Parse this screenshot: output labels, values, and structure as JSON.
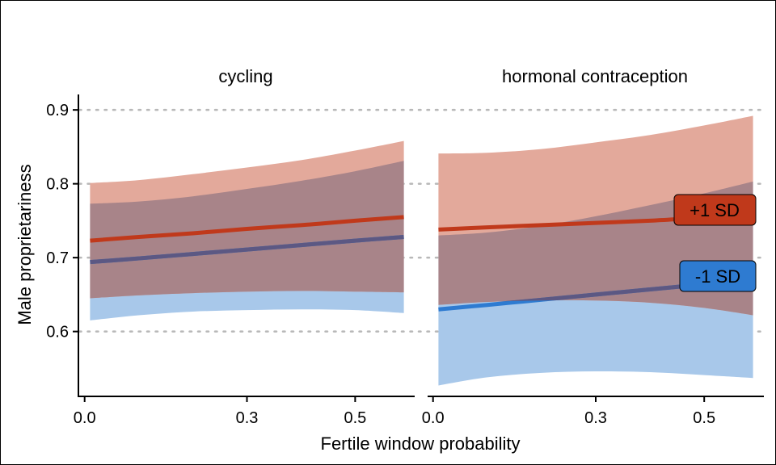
{
  "chart_data": {
    "type": "line",
    "xlabel": "Fertile window probability",
    "ylabel": "Male proprietariness",
    "xlim": [
      -0.01,
      0.61
    ],
    "ylim": [
      0.51,
      0.91
    ],
    "x_ticks": [
      "0.0",
      "0.3",
      "0.5"
    ],
    "x_tick_values": [
      0.0,
      0.3,
      0.5
    ],
    "y_ticks": [
      "0.6",
      "0.7",
      "0.8",
      "0.9"
    ],
    "y_tick_values": [
      0.6,
      0.7,
      0.8,
      0.9
    ],
    "grid": "horizontal dotted",
    "colors": {
      "plus": "#c0391b",
      "plus_band": "#e3a99b",
      "minus": "#2e7bd1",
      "minus_band": "#a8c8ea",
      "overlap_band": "#a88489",
      "minus_line_on_overlap": "#5c5883",
      "grid": "#b8b8b8"
    },
    "panels": [
      {
        "title": "cycling",
        "series": [
          {
            "name": "+1 SD",
            "x": [
              0.01,
              0.1,
              0.2,
              0.3,
              0.4,
              0.5,
              0.59
            ],
            "y": [
              0.723,
              0.728,
              0.733,
              0.739,
              0.744,
              0.75,
              0.755
            ],
            "lower": [
              0.645,
              0.649,
              0.652,
              0.654,
              0.655,
              0.654,
              0.653
            ],
            "upper": [
              0.801,
              0.805,
              0.813,
              0.822,
              0.832,
              0.845,
              0.858
            ]
          },
          {
            "name": "-1 SD",
            "x": [
              0.01,
              0.1,
              0.2,
              0.3,
              0.4,
              0.5,
              0.59
            ],
            "y": [
              0.694,
              0.699,
              0.705,
              0.711,
              0.717,
              0.723,
              0.728
            ],
            "lower": [
              0.615,
              0.622,
              0.627,
              0.629,
              0.63,
              0.629,
              0.625
            ],
            "upper": [
              0.773,
              0.776,
              0.783,
              0.793,
              0.804,
              0.817,
              0.831
            ]
          }
        ]
      },
      {
        "title": "hormonal contraception",
        "series": [
          {
            "name": "+1 SD",
            "x": [
              0.01,
              0.1,
              0.2,
              0.3,
              0.4,
              0.5,
              0.59
            ],
            "y": [
              0.738,
              0.741,
              0.744,
              0.747,
              0.75,
              0.754,
              0.756
            ],
            "lower": [
              0.636,
              0.64,
              0.642,
              0.642,
              0.639,
              0.632,
              0.622
            ],
            "upper": [
              0.841,
              0.842,
              0.847,
              0.856,
              0.866,
              0.879,
              0.892
            ]
          },
          {
            "name": "-1 SD",
            "x": [
              0.01,
              0.1,
              0.2,
              0.3,
              0.4,
              0.5,
              0.59
            ],
            "y": [
              0.63,
              0.636,
              0.643,
              0.65,
              0.657,
              0.664,
              0.67
            ],
            "lower": [
              0.527,
              0.538,
              0.544,
              0.546,
              0.545,
              0.541,
              0.537
            ],
            "upper": [
              0.73,
              0.734,
              0.743,
              0.756,
              0.771,
              0.787,
              0.803
            ]
          }
        ]
      }
    ],
    "annotations": [
      {
        "panel": 1,
        "text": "+1 SD",
        "series": "+1 SD"
      },
      {
        "panel": 1,
        "text": "-1 SD",
        "series": "-1 SD"
      }
    ]
  }
}
